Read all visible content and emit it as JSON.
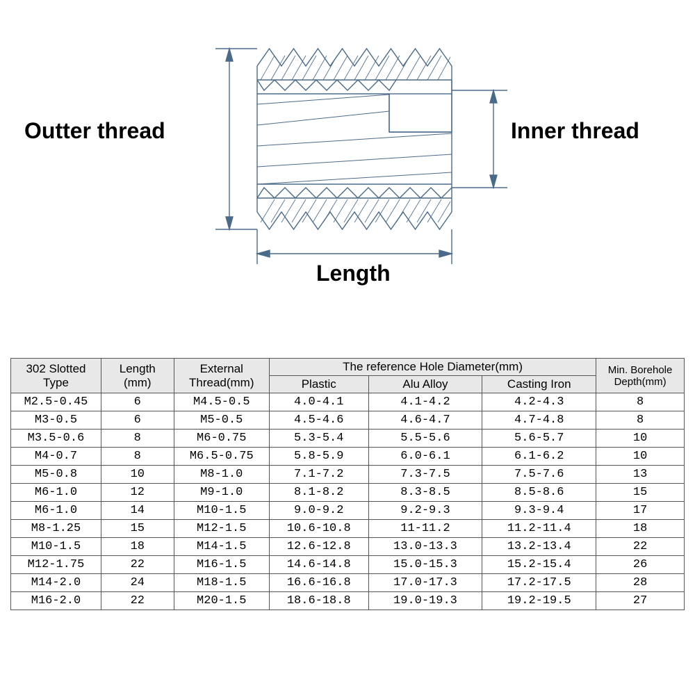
{
  "diagram": {
    "label_outer": "Outter thread",
    "label_inner": "Inner thread",
    "label_length": "Length",
    "label_fontsize": 32,
    "stroke_color": "#4a6a8a",
    "stroke_width": 1.4
  },
  "table": {
    "header": {
      "type": "302 Slotted Type",
      "type_l1": "302 Slotted",
      "type_l2": "Type",
      "length_l1": "Length",
      "length_l2": "(mm)",
      "ext_l1": "External",
      "ext_l2": "Thread(mm)",
      "ref_group": "The reference Hole Diameter(mm)",
      "plastic": "Plastic",
      "alu": "Alu Alloy",
      "cast": "Casting Iron",
      "bore_l1": "Min. Borehole",
      "bore_l2": "Depth(mm)"
    },
    "rows": [
      {
        "type": "M2.5-0.45",
        "len": "6",
        "ext": "M4.5-0.5",
        "pl": "4.0-4.1",
        "al": "4.1-4.2",
        "ci": "4.2-4.3",
        "bd": "8"
      },
      {
        "type": "M3-0.5",
        "len": "6",
        "ext": "M5-0.5",
        "pl": "4.5-4.6",
        "al": "4.6-4.7",
        "ci": "4.7-4.8",
        "bd": "8"
      },
      {
        "type": "M3.5-0.6",
        "len": "8",
        "ext": "M6-0.75",
        "pl": "5.3-5.4",
        "al": "5.5-5.6",
        "ci": "5.6-5.7",
        "bd": "10"
      },
      {
        "type": "M4-0.7",
        "len": "8",
        "ext": "M6.5-0.75",
        "pl": "5.8-5.9",
        "al": "6.0-6.1",
        "ci": "6.1-6.2",
        "bd": "10"
      },
      {
        "type": "M5-0.8",
        "len": "10",
        "ext": "M8-1.0",
        "pl": "7.1-7.2",
        "al": "7.3-7.5",
        "ci": "7.5-7.6",
        "bd": "13"
      },
      {
        "type": "M6-1.0",
        "len": "12",
        "ext": "M9-1.0",
        "pl": "8.1-8.2",
        "al": "8.3-8.5",
        "ci": "8.5-8.6",
        "bd": "15"
      },
      {
        "type": "M6-1.0",
        "len": "14",
        "ext": "M10-1.5",
        "pl": "9.0-9.2",
        "al": "9.2-9.3",
        "ci": "9.3-9.4",
        "bd": "17"
      },
      {
        "type": "M8-1.25",
        "len": "15",
        "ext": "M12-1.5",
        "pl": "10.6-10.8",
        "al": "11-11.2",
        "ci": "11.2-11.4",
        "bd": "18"
      },
      {
        "type": "M10-1.5",
        "len": "18",
        "ext": "M14-1.5",
        "pl": "12.6-12.8",
        "al": "13.0-13.3",
        "ci": "13.2-13.4",
        "bd": "22"
      },
      {
        "type": "M12-1.75",
        "len": "22",
        "ext": "M16-1.5",
        "pl": "14.6-14.8",
        "al": "15.0-15.3",
        "ci": "15.2-15.4",
        "bd": "26"
      },
      {
        "type": "M14-2.0",
        "len": "24",
        "ext": "M18-1.5",
        "pl": "16.6-16.8",
        "al": "17.0-17.3",
        "ci": "17.2-17.5",
        "bd": "28"
      },
      {
        "type": "M16-2.0",
        "len": "22",
        "ext": "M20-1.5",
        "pl": "18.6-18.8",
        "al": "19.0-19.3",
        "ci": "19.2-19.5",
        "bd": "27"
      }
    ],
    "header_bg": "#e8e8e8",
    "border_color": "#555555"
  }
}
